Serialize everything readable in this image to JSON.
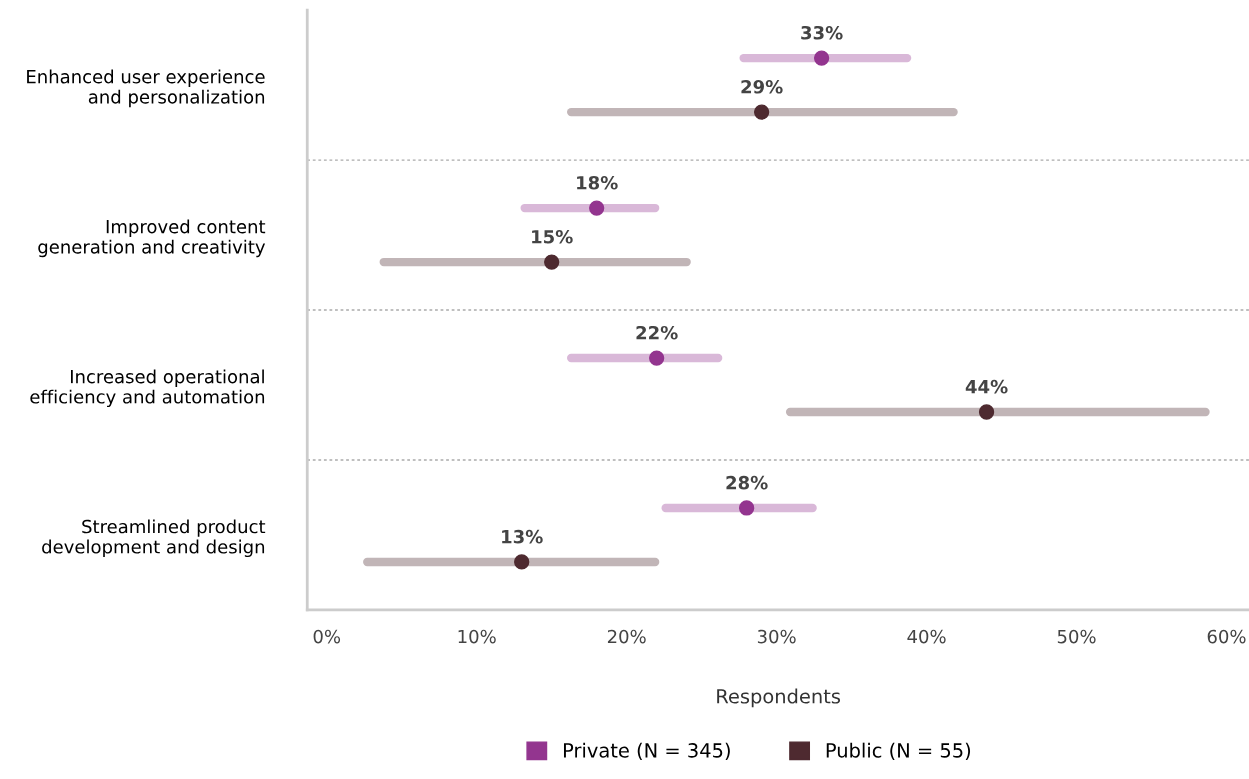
{
  "chart_data": {
    "type": "scatter",
    "orientation": "horizontal",
    "categories": [
      "Enhanced user experience\nand personalization",
      "Improved content\ngeneration and creativity",
      "Increased operational\nefficiency and automation",
      "Streamlined product\ndevelopment and design"
    ],
    "series": [
      {
        "name": "Private (N = 345)",
        "color": "#93358f",
        "values": [
          33,
          18,
          22,
          28
        ],
        "errors": [
          [
            27.8,
            38.7
          ],
          [
            13.2,
            21.9
          ],
          [
            16.3,
            26.1
          ],
          [
            22.6,
            32.4
          ]
        ],
        "value_labels": [
          "33%",
          "18%",
          "22%",
          "28%"
        ]
      },
      {
        "name": "Public (N = 55)",
        "color": "#4e2a30",
        "values": [
          29,
          15,
          44,
          13
        ],
        "errors": [
          [
            16.3,
            41.8
          ],
          [
            3.8,
            24.0
          ],
          [
            30.9,
            58.6
          ],
          [
            2.7,
            21.9
          ]
        ],
        "value_labels": [
          "29%",
          "15%",
          "44%",
          "13%"
        ]
      }
    ],
    "xlabel": "Respondents",
    "xlim": [
      -1.3,
      61.5
    ],
    "xticks": [
      {
        "value": 0,
        "label": "0%"
      },
      {
        "value": 10,
        "label": "10%"
      },
      {
        "value": 20,
        "label": "20%"
      },
      {
        "value": 30,
        "label": "30%"
      },
      {
        "value": 40,
        "label": "40%"
      },
      {
        "value": 50,
        "label": "50%"
      },
      {
        "value": 60,
        "label": "60%"
      }
    ],
    "grid": "y",
    "legend": "bottom",
    "marker": "circle"
  }
}
